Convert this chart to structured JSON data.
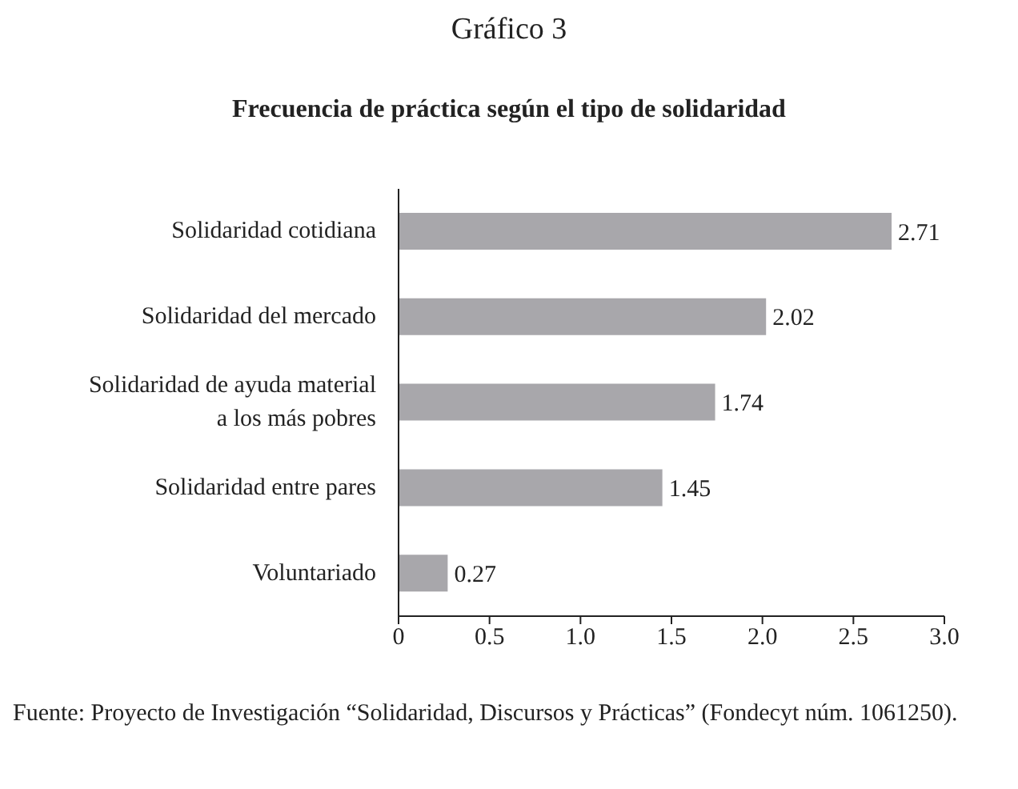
{
  "chart_data": {
    "type": "bar",
    "orientation": "horizontal",
    "title": "Gráfico 3",
    "subtitle": "Frecuencia de práctica según el tipo de solidaridad",
    "categories": [
      "Solidaridad cotidiana",
      "Solidaridad del mercado",
      "Solidaridad de ayuda material a los más pobres",
      "Solidaridad entre pares",
      "Voluntariado"
    ],
    "values": [
      2.71,
      2.02,
      1.74,
      1.45,
      0.27
    ],
    "color": "#a8a7ab",
    "data_labels": true,
    "xlim": [
      0,
      3
    ],
    "xticks": [
      0,
      0.5,
      {
        "value": 1,
        "label": "1.0"
      },
      1.5,
      {
        "value": 2,
        "label": "2.0"
      },
      2.5,
      {
        "value": 3,
        "label": "3.0"
      }
    ],
    "annotations": [
      "Fuente: Proyecto de Investigación “Solidaridad, Discursos y Prácticas” (Fondecyt núm. 1061250)."
    ]
  }
}
